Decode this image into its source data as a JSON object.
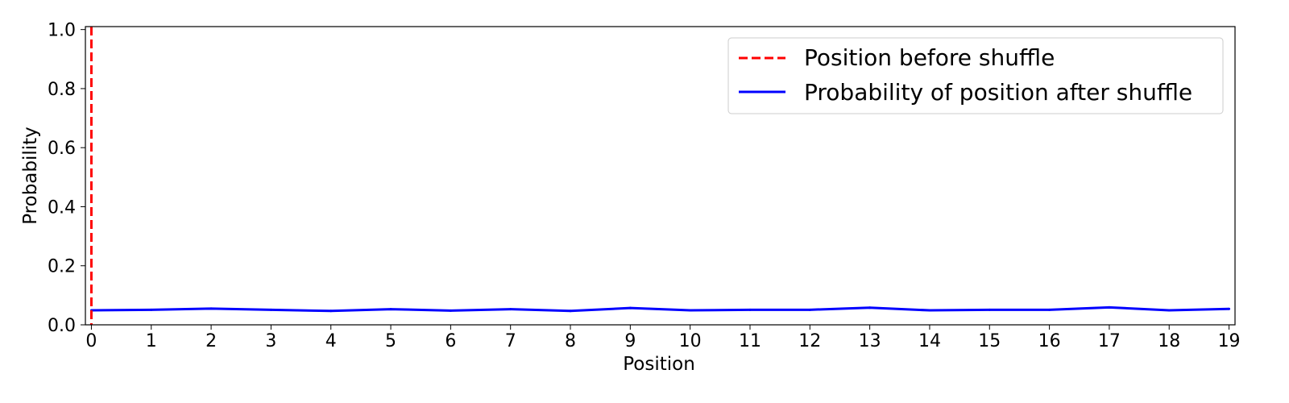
{
  "chart_data": {
    "type": "line",
    "xlabel": "Position",
    "ylabel": "Probability",
    "xlim": [
      -0.1,
      19.1
    ],
    "ylim": [
      0,
      1.01
    ],
    "x_ticks": [
      "0",
      "1",
      "2",
      "3",
      "4",
      "5",
      "6",
      "7",
      "8",
      "9",
      "10",
      "11",
      "12",
      "13",
      "14",
      "15",
      "16",
      "17",
      "18",
      "19"
    ],
    "y_ticks": [
      "0.0",
      "0.2",
      "0.4",
      "0.6",
      "0.8",
      "1.0"
    ],
    "grid": false,
    "legend_position": "top-right",
    "vline": {
      "name": "Position before shuffle",
      "x": 0,
      "color": "#ff0000",
      "style": "dashed"
    },
    "series": [
      {
        "name": "Probability of position after shuffle",
        "color": "#0000ff",
        "x": [
          0,
          1,
          2,
          3,
          4,
          5,
          6,
          7,
          8,
          9,
          10,
          11,
          12,
          13,
          14,
          15,
          16,
          17,
          18,
          19
        ],
        "values": [
          0.049,
          0.051,
          0.055,
          0.051,
          0.047,
          0.053,
          0.048,
          0.053,
          0.047,
          0.057,
          0.049,
          0.051,
          0.051,
          0.058,
          0.049,
          0.051,
          0.051,
          0.059,
          0.049,
          0.054
        ]
      }
    ]
  }
}
